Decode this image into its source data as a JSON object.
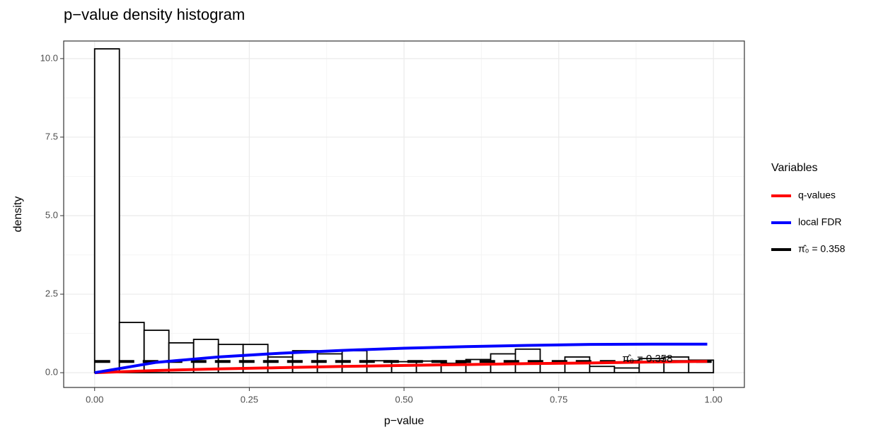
{
  "chart_data": {
    "type": "histogram",
    "title": "p−value density histogram",
    "x_label": "p−value",
    "y_label": "density",
    "legend_title": "Variables",
    "legend_position": "right",
    "annotation": "π̂₀ = 0.358",
    "bins": [
      0,
      0.04,
      0.08,
      0.12,
      0.16,
      0.2,
      0.24,
      0.28,
      0.32,
      0.36,
      0.4,
      0.44,
      0.48,
      0.52,
      0.56,
      0.6,
      0.64,
      0.68,
      0.72,
      0.76,
      0.8,
      0.84,
      0.88,
      0.92,
      0.96,
      1
    ],
    "values": [
      10.31,
      1.6,
      1.35,
      0.95,
      1.06,
      0.9,
      0.9,
      0.5,
      0.7,
      0.6,
      0.7,
      0.38,
      0.35,
      0.37,
      0.3,
      0.42,
      0.6,
      0.75,
      0.3,
      0.5,
      0.2,
      0.15,
      0.45,
      0.5,
      0.4
    ],
    "bar_fill": "#ffffff",
    "bar_edge": "#000000",
    "series": [
      {
        "name": "q-values",
        "color": "#ff0000",
        "x": [
          0,
          0.1,
          0.2,
          0.3,
          0.4,
          0.5,
          0.6,
          0.7,
          0.8,
          0.9,
          0.99
        ],
        "values": [
          0,
          0.07,
          0.12,
          0.16,
          0.2,
          0.23,
          0.26,
          0.29,
          0.31,
          0.34,
          0.36
        ]
      },
      {
        "name": "local FDR",
        "color": "#0000ff",
        "x": [
          0,
          0.1,
          0.2,
          0.3,
          0.4,
          0.5,
          0.6,
          0.7,
          0.8,
          0.9,
          0.99
        ],
        "values": [
          0,
          0.33,
          0.5,
          0.62,
          0.71,
          0.78,
          0.83,
          0.87,
          0.9,
          0.91,
          0.91
        ]
      },
      {
        "name": "π̂₀ = 0.358",
        "color": "#000000",
        "dashed": true,
        "x": [
          0,
          1
        ],
        "values": [
          0.358,
          0.358
        ]
      }
    ],
    "xlim": [
      -0.05,
      1.05
    ],
    "ylim": [
      -0.47,
      10.56
    ],
    "xticks": [
      {
        "value": 0,
        "label": "0.00"
      },
      0.25,
      {
        "value": 0.5,
        "label": "0.50"
      },
      0.75,
      {
        "value": 1,
        "label": "1.00"
      }
    ],
    "yticks": [
      {
        "value": 0,
        "label": "0.0"
      },
      2.5,
      {
        "value": 5,
        "label": "5.0"
      },
      7.5,
      {
        "value": 10,
        "label": "10.0"
      }
    ],
    "grid": true
  }
}
